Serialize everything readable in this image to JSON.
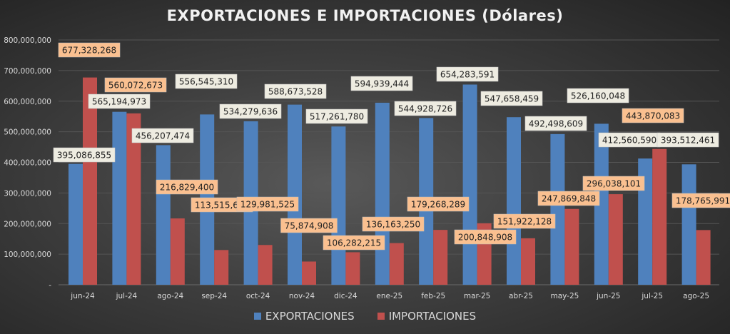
{
  "chart_data": {
    "type": "bar",
    "title": "EXPORTACIONES E IMPORTACIONES (Dólares)",
    "xlabel": "",
    "ylabel": "",
    "ylim": [
      0,
      800000000
    ],
    "yticks": [
      "-",
      "100,000,000",
      "200,000,000",
      "300,000,000",
      "400,000,000",
      "500,000,000",
      "600,000,000",
      "700,000,000",
      "800,000,000"
    ],
    "grid": true,
    "legend_position": "bottom",
    "categories": [
      "jun-24",
      "jul-24",
      "ago-24",
      "sep-24",
      "oct-24",
      "nov-24",
      "dic-24",
      "ene-25",
      "feb-25",
      "mar-25",
      "abr-25",
      "may-25",
      "jun-25",
      "jul-25",
      "ago-25"
    ],
    "series": [
      {
        "name": "EXPORTACIONES",
        "color": "#4f81bd",
        "label_bg": "#eeece1",
        "values": [
          395086855,
          565194973,
          456207474,
          556545310,
          534279636,
          588673528,
          517261780,
          594939444,
          544928726,
          654283591,
          547658459,
          492498609,
          526160048,
          412560590,
          393512461
        ],
        "labels": [
          "395,086,855",
          "565,194,973",
          "456,207,474",
          "556,545,310",
          "534,279,636",
          "588,673,528",
          "517,261,780",
          "594,939,444",
          "544,928,726",
          "654,283,591",
          "547,658,459",
          "492,498,609",
          "526,160,048",
          "412,560,590",
          "393,512,461"
        ]
      },
      {
        "name": "IMPORTACIONES",
        "color": "#c0504d",
        "label_bg": "#fac090",
        "values": [
          677328268,
          560072673,
          216829400,
          113515698,
          129981525,
          75874908,
          106282215,
          136163250,
          179268289,
          200848908,
          151922128,
          247869848,
          296038101,
          443870083,
          178765991
        ],
        "labels": [
          "677,328,268",
          "560,072,673",
          "216,829,400",
          "113,515,698",
          "129,981,525",
          "75,874,908",
          "106,282,215",
          "136,163,250",
          "179,268,289",
          "200,848,908",
          "151,922,128",
          "247,869,848",
          "296,038,101",
          "443,870,083",
          "178,765,991"
        ]
      }
    ]
  }
}
